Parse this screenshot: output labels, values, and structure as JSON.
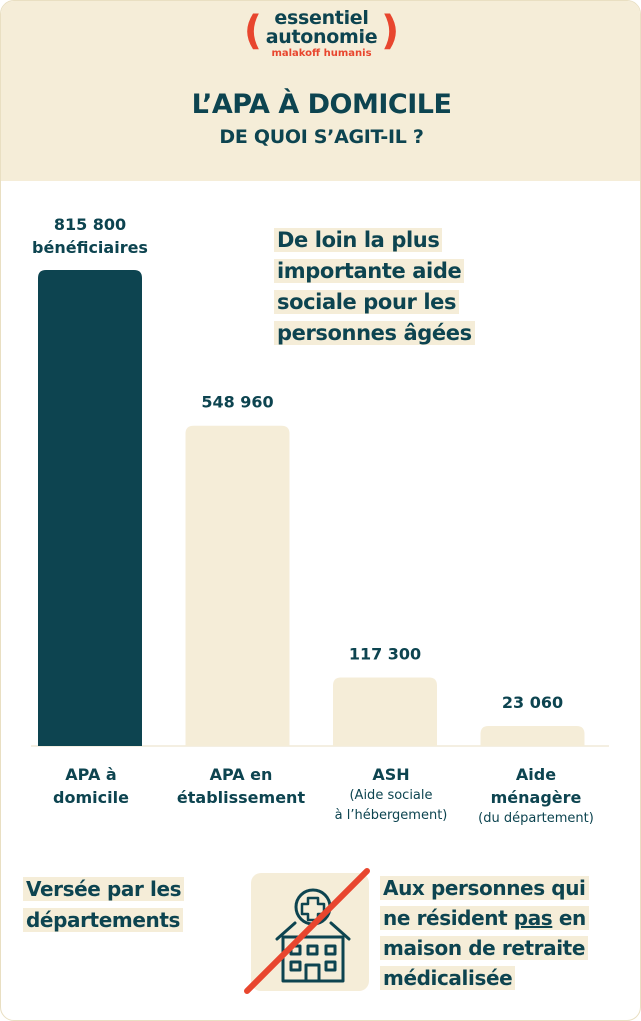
{
  "brand": {
    "line1": "essentiel",
    "line2": "autonomie",
    "sub": "malakoff humanis",
    "paren_open": "(",
    "paren_close": ")",
    "accent": "#e8462e"
  },
  "header": {
    "title": "L’APA À DOMICILE",
    "subtitle": "DE QUOI S’AGIT-IL ?"
  },
  "callout": {
    "line1": "De loin la plus",
    "line2": "importante aide",
    "line3": "sociale pour les",
    "line4": "personnes âgées"
  },
  "chart_data": {
    "type": "bar",
    "categories": [
      "APA à domicile",
      "APA en établissement",
      "ASH (Aide sociale à l’hébergement)",
      "Aide ménagère (du département)"
    ],
    "values": [
      815800,
      548960,
      117300,
      23060
    ],
    "data_labels": [
      "815 800",
      "548 960",
      "117 300",
      "23 060"
    ],
    "first_label_unit": "bénéficiaires",
    "colors": [
      "#0d4450",
      "#f5edd8",
      "#f5edd8",
      "#f5edd8"
    ],
    "ylim": [
      0,
      815800
    ],
    "grid": false,
    "legend": "none",
    "category_display": [
      {
        "main1": "APA à",
        "main2": "domicile"
      },
      {
        "main1": "APA en",
        "main2": "établissement"
      },
      {
        "main1": "ASH",
        "sub1": "(Aide sociale",
        "sub2": "à l’hébergement)"
      },
      {
        "main1": "Aide",
        "main2": "ménagère",
        "sub1": "(du département)"
      }
    ]
  },
  "bottom": {
    "left_line1": "Versée par les",
    "left_line2": "départements",
    "right_line1": "Aux personnes qui",
    "right_line2_a": "ne résident ",
    "right_line2_b": "pas",
    "right_line2_c": " en",
    "right_line3": "maison de retraite",
    "right_line4": "médicalisée",
    "icon": "nursing-home-crossed-icon"
  },
  "colors": {
    "dark": "#0d4450",
    "cream": "#f5edd8",
    "red": "#e8462e"
  }
}
